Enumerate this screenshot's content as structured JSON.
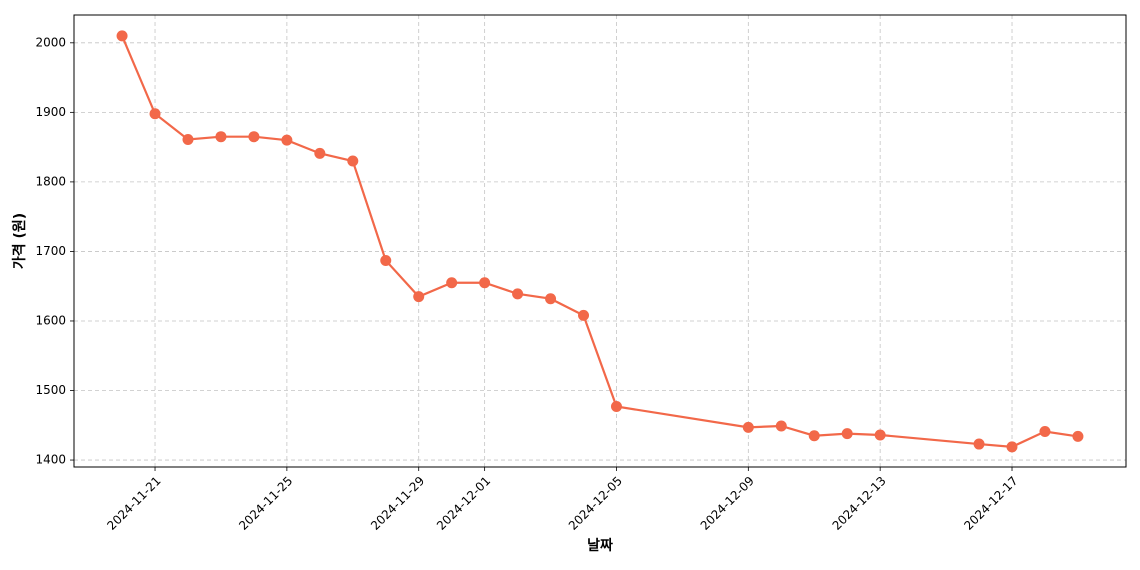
{
  "chart_data": {
    "type": "line",
    "x_label": "날짜",
    "y_label": "가격 (원)",
    "x": [
      "2024-11-20",
      "2024-11-21",
      "2024-11-22",
      "2024-11-23",
      "2024-11-24",
      "2024-11-25",
      "2024-11-26",
      "2024-11-27",
      "2024-11-28",
      "2024-11-29",
      "2024-11-30",
      "2024-12-01",
      "2024-12-02",
      "2024-12-03",
      "2024-12-04",
      "2024-12-05",
      "2024-12-09",
      "2024-12-10",
      "2024-12-11",
      "2024-12-12",
      "2024-12-13",
      "2024-12-16",
      "2024-12-17",
      "2024-12-18",
      "2024-12-19"
    ],
    "values": [
      2010,
      1898,
      1861,
      1865,
      1865,
      1860,
      1841,
      1830,
      1687,
      1635,
      1655,
      1655,
      1639,
      1632,
      1608,
      1477,
      1447,
      1449,
      1435,
      1438,
      1436,
      1423,
      1419,
      1441,
      1434
    ],
    "color": "#f26849",
    "xlim": [
      "2024-11-18T13:00:00Z",
      "2024-12-20T11:00:00Z"
    ],
    "xticks": [
      "2024-11-21",
      "2024-11-25",
      "2024-11-29",
      "2024-12-01",
      "2024-12-05",
      "2024-12-09",
      "2024-12-13",
      "2024-12-17"
    ],
    "ylim": [
      1390,
      2040
    ],
    "yticks": [
      1400,
      1500,
      1600,
      1700,
      1800,
      1900,
      2000
    ],
    "grid": true
  }
}
